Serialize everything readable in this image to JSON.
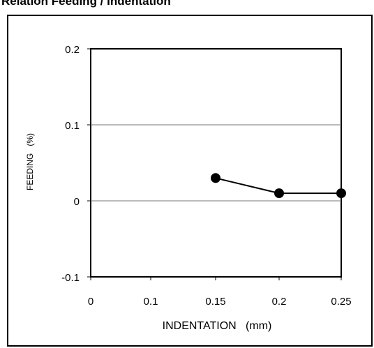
{
  "chart_data": {
    "type": "line",
    "title": "Relation Feeding / Indentation",
    "xlabel": "INDENTATION   (mm)",
    "ylabel": "FEEDING   (%)",
    "xlim": [
      0,
      0.25
    ],
    "ylim": [
      -0.1,
      0.2
    ],
    "x_ticks": [
      "0",
      "0.1",
      "0.15",
      "0.2",
      "0.25"
    ],
    "y_ticks": [
      "0.2",
      "0.1",
      "0",
      "-0.1"
    ],
    "gridlines_y": [
      0.1,
      0
    ],
    "legend": "none",
    "series": [
      {
        "x": [
          0.15,
          0.2,
          0.25
        ],
        "y": [
          0.03,
          0.01,
          0.01
        ],
        "color": "#000000"
      }
    ]
  }
}
